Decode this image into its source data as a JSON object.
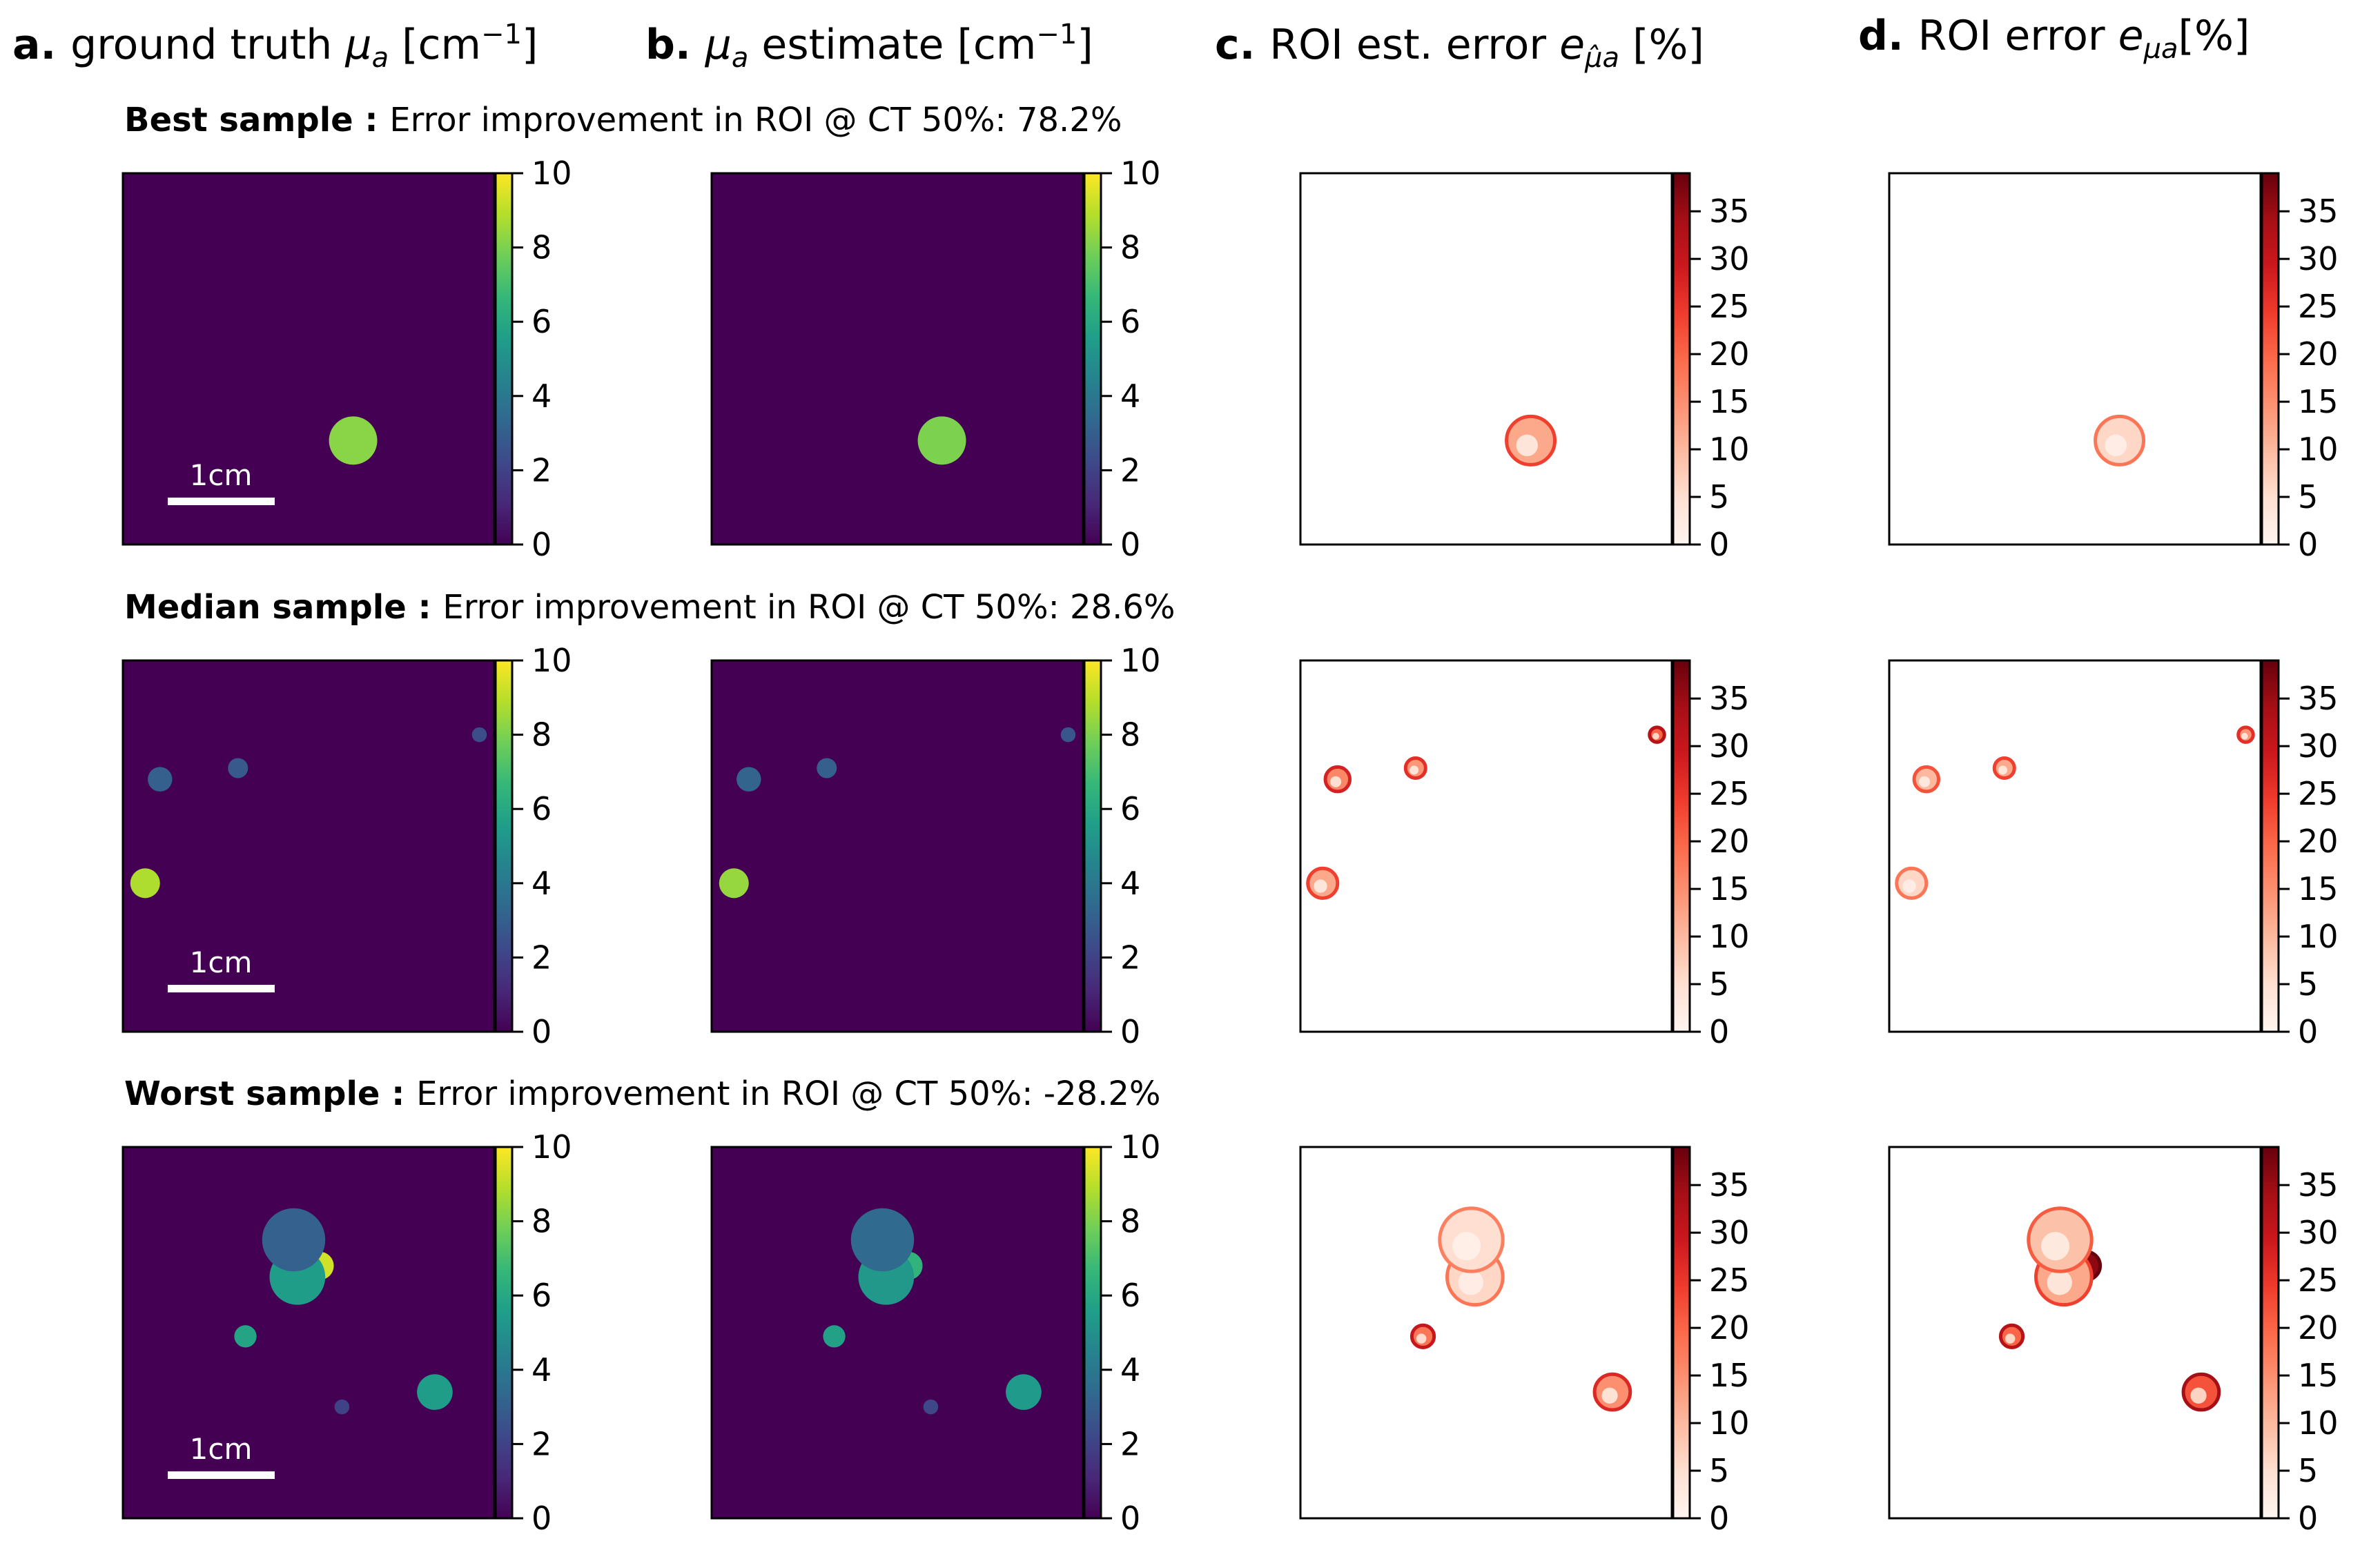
{
  "columns": [
    {
      "letter": "a.",
      "text": "ground truth ",
      "sym": "μ",
      "sub": "a",
      "tail": " [cm",
      "sup": "−1",
      "end": "]"
    },
    {
      "letter": "b.",
      "text": "",
      "sym": "μ",
      "sub": "a",
      "tail": " estimate [cm",
      "sup": "−1",
      "end": "]"
    },
    {
      "letter": "c.",
      "text": "ROI est. error ",
      "sym": "e",
      "sub": "μ̂a",
      "tail": " [%]",
      "sup": "",
      "end": ""
    },
    {
      "letter": "d.",
      "text": "ROI error ",
      "sym": "e",
      "sub": "μa",
      "tail": "[%]",
      "sup": "",
      "end": ""
    }
  ],
  "rows": [
    {
      "label": "Best sample :",
      "caption": "Error improvement in ROI @ CT 50%: 78.2%"
    },
    {
      "label": "Median sample :",
      "caption": "Error improvement in ROI @ CT 50%: 28.6%"
    },
    {
      "label": "Worst sample :",
      "caption": "Error improvement in ROI @ CT 50%: -28.2%"
    }
  ],
  "scale_bar_label": "1cm",
  "colors": {
    "background": "#440154",
    "viridis": [
      "#440154",
      "#482878",
      "#3e4989",
      "#31688e",
      "#26828e",
      "#1f9e89",
      "#35b779",
      "#6ece58",
      "#b5de2b",
      "#fde725"
    ],
    "reds": [
      "#fff5f0",
      "#fee0d2",
      "#fcbba1",
      "#fc9272",
      "#fb6a4a",
      "#ef3b2c",
      "#cb181d",
      "#a50f15",
      "#67000d"
    ]
  },
  "chart_data": [
    {
      "type": "heatmap",
      "panel": "a",
      "colormap": "viridis",
      "colorbar_ticks": [
        "0",
        "2",
        "4",
        "6",
        "8",
        "10"
      ],
      "zlim": [
        0,
        10
      ],
      "samples": [
        {
          "row": "Best",
          "inclusions": [
            {
              "x": 0.62,
              "y": 0.72,
              "r": 0.065,
              "value": 8.2
            }
          ]
        },
        {
          "row": "Median",
          "inclusions": [
            {
              "x": 0.1,
              "y": 0.32,
              "r": 0.033,
              "value": 3.0
            },
            {
              "x": 0.31,
              "y": 0.29,
              "r": 0.027,
              "value": 2.8
            },
            {
              "x": 0.96,
              "y": 0.2,
              "r": 0.02,
              "value": 2.4
            },
            {
              "x": 0.06,
              "y": 0.6,
              "r": 0.04,
              "value": 8.8
            }
          ]
        },
        {
          "row": "Worst",
          "inclusions": [
            {
              "x": 0.53,
              "y": 0.32,
              "r": 0.038,
              "value": 9.3
            },
            {
              "x": 0.47,
              "y": 0.35,
              "r": 0.075,
              "value": 5.5
            },
            {
              "x": 0.46,
              "y": 0.25,
              "r": 0.085,
              "value": 3.1
            },
            {
              "x": 0.33,
              "y": 0.51,
              "r": 0.03,
              "value": 5.8
            },
            {
              "x": 0.59,
              "y": 0.7,
              "r": 0.02,
              "value": 2.0
            },
            {
              "x": 0.84,
              "y": 0.66,
              "r": 0.048,
              "value": 5.5
            }
          ]
        }
      ]
    },
    {
      "type": "heatmap",
      "panel": "b",
      "colormap": "viridis",
      "colorbar_ticks": [
        "0",
        "2",
        "4",
        "6",
        "8",
        "10"
      ],
      "zlim": [
        0,
        10
      ],
      "samples": [
        {
          "row": "Best",
          "inclusions": [
            {
              "x": 0.62,
              "y": 0.72,
              "r": 0.065,
              "value": 8.0
            }
          ]
        },
        {
          "row": "Median",
          "inclusions": [
            {
              "x": 0.1,
              "y": 0.32,
              "r": 0.033,
              "value": 3.2
            },
            {
              "x": 0.31,
              "y": 0.29,
              "r": 0.027,
              "value": 3.0
            },
            {
              "x": 0.96,
              "y": 0.2,
              "r": 0.02,
              "value": 2.7
            },
            {
              "x": 0.06,
              "y": 0.6,
              "r": 0.04,
              "value": 8.4
            }
          ]
        },
        {
          "row": "Worst",
          "inclusions": [
            {
              "x": 0.53,
              "y": 0.32,
              "r": 0.038,
              "value": 6.5
            },
            {
              "x": 0.47,
              "y": 0.35,
              "r": 0.075,
              "value": 5.3
            },
            {
              "x": 0.46,
              "y": 0.25,
              "r": 0.085,
              "value": 3.4
            },
            {
              "x": 0.33,
              "y": 0.51,
              "r": 0.03,
              "value": 5.7
            },
            {
              "x": 0.59,
              "y": 0.7,
              "r": 0.02,
              "value": 2.2
            },
            {
              "x": 0.84,
              "y": 0.66,
              "r": 0.048,
              "value": 5.4
            }
          ]
        }
      ]
    },
    {
      "type": "heatmap",
      "panel": "c",
      "colormap": "reds",
      "colorbar_ticks": [
        "0",
        "5",
        "10",
        "15",
        "20",
        "25",
        "30",
        "35"
      ],
      "zlim": [
        0,
        39
      ],
      "samples": [
        {
          "row": "Best",
          "regions": [
            {
              "x": 0.62,
              "y": 0.72,
              "r": 0.065,
              "value": 12
            }
          ]
        },
        {
          "row": "Median",
          "regions": [
            {
              "x": 0.1,
              "y": 0.32,
              "r": 0.033,
              "value": 16
            },
            {
              "x": 0.31,
              "y": 0.29,
              "r": 0.027,
              "value": 14
            },
            {
              "x": 0.96,
              "y": 0.2,
              "r": 0.02,
              "value": 20
            },
            {
              "x": 0.06,
              "y": 0.6,
              "r": 0.04,
              "value": 12
            }
          ]
        },
        {
          "row": "Worst",
          "regions": [
            {
              "x": 0.47,
              "y": 0.35,
              "r": 0.075,
              "value": 6
            },
            {
              "x": 0.46,
              "y": 0.25,
              "r": 0.085,
              "value": 5
            },
            {
              "x": 0.33,
              "y": 0.51,
              "r": 0.03,
              "value": 18
            },
            {
              "x": 0.84,
              "y": 0.66,
              "r": 0.048,
              "value": 15
            }
          ]
        }
      ]
    },
    {
      "type": "heatmap",
      "panel": "d",
      "colormap": "reds",
      "colorbar_ticks": [
        "0",
        "5",
        "10",
        "15",
        "20",
        "25",
        "30",
        "35"
      ],
      "zlim": [
        0,
        39
      ],
      "samples": [
        {
          "row": "Best",
          "regions": [
            {
              "x": 0.62,
              "y": 0.72,
              "r": 0.065,
              "value": 6
            }
          ]
        },
        {
          "row": "Median",
          "regions": [
            {
              "x": 0.1,
              "y": 0.32,
              "r": 0.033,
              "value": 10
            },
            {
              "x": 0.31,
              "y": 0.29,
              "r": 0.027,
              "value": 12
            },
            {
              "x": 0.96,
              "y": 0.2,
              "r": 0.02,
              "value": 14
            },
            {
              "x": 0.06,
              "y": 0.6,
              "r": 0.04,
              "value": 6
            }
          ]
        },
        {
          "row": "Worst",
          "regions": [
            {
              "x": 0.53,
              "y": 0.32,
              "r": 0.038,
              "value": 36
            },
            {
              "x": 0.47,
              "y": 0.35,
              "r": 0.075,
              "value": 12
            },
            {
              "x": 0.46,
              "y": 0.25,
              "r": 0.085,
              "value": 9
            },
            {
              "x": 0.33,
              "y": 0.51,
              "r": 0.03,
              "value": 20
            },
            {
              "x": 0.84,
              "y": 0.66,
              "r": 0.048,
              "value": 22
            }
          ]
        }
      ]
    }
  ]
}
